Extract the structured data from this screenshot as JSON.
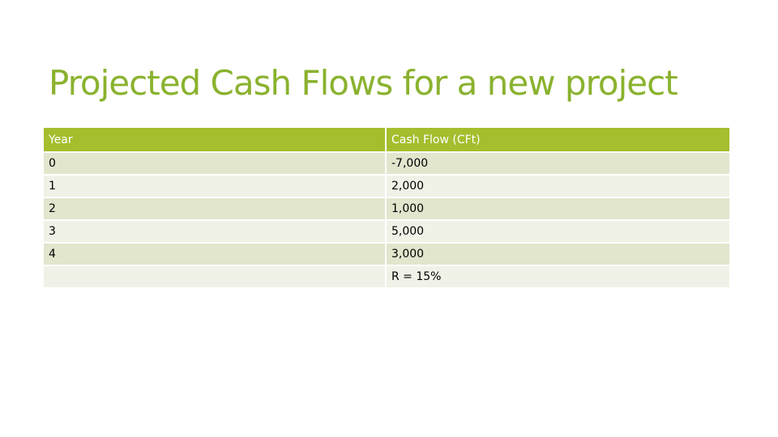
{
  "slide": {
    "title": "Projected Cash Flows for a new project"
  },
  "table": {
    "headers": [
      "Year",
      "Cash Flow (CFt)"
    ],
    "rows": [
      [
        "0",
        "-7,000"
      ],
      [
        "1",
        "2,000"
      ],
      [
        "2",
        "1,000"
      ],
      [
        "3",
        "5,000"
      ],
      [
        "4",
        "3,000"
      ],
      [
        "",
        "R = 15%"
      ]
    ]
  },
  "colors": {
    "title": "#8ab22e",
    "header_bg": "#a4be2e",
    "row_dark": "#e1e6cd",
    "row_light": "#f0f2e7"
  }
}
